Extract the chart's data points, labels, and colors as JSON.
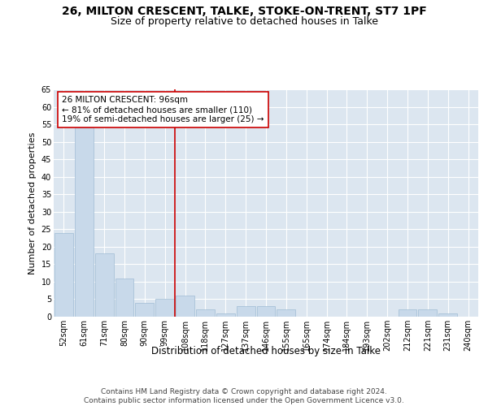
{
  "title1": "26, MILTON CRESCENT, TALKE, STOKE-ON-TRENT, ST7 1PF",
  "title2": "Size of property relative to detached houses in Talke",
  "xlabel": "Distribution of detached houses by size in Talke",
  "ylabel": "Number of detached properties",
  "categories": [
    "52sqm",
    "61sqm",
    "71sqm",
    "80sqm",
    "90sqm",
    "99sqm",
    "108sqm",
    "118sqm",
    "127sqm",
    "137sqm",
    "146sqm",
    "155sqm",
    "165sqm",
    "174sqm",
    "184sqm",
    "193sqm",
    "202sqm",
    "212sqm",
    "221sqm",
    "231sqm",
    "240sqm"
  ],
  "values": [
    24,
    54,
    18,
    11,
    4,
    5,
    6,
    2,
    1,
    3,
    3,
    2,
    0,
    0,
    0,
    0,
    0,
    2,
    2,
    1,
    0
  ],
  "bar_color": "#c8d9ea",
  "bar_edgecolor": "#a0bcd4",
  "bg_color": "#dce6f0",
  "grid_color": "#ffffff",
  "vline_x": 5.5,
  "vline_color": "#cc0000",
  "annotation_text": "26 MILTON CRESCENT: 96sqm\n← 81% of detached houses are smaller (110)\n19% of semi-detached houses are larger (25) →",
  "annotation_box_color": "#ffffff",
  "annotation_box_edgecolor": "#cc0000",
  "ylim": [
    0,
    65
  ],
  "yticks": [
    0,
    5,
    10,
    15,
    20,
    25,
    30,
    35,
    40,
    45,
    50,
    55,
    60,
    65
  ],
  "footer": "Contains HM Land Registry data © Crown copyright and database right 2024.\nContains public sector information licensed under the Open Government Licence v3.0.",
  "title1_fontsize": 10,
  "title2_fontsize": 9,
  "xlabel_fontsize": 8.5,
  "ylabel_fontsize": 8,
  "annotation_fontsize": 7.5,
  "footer_fontsize": 6.5,
  "tick_fontsize": 7
}
